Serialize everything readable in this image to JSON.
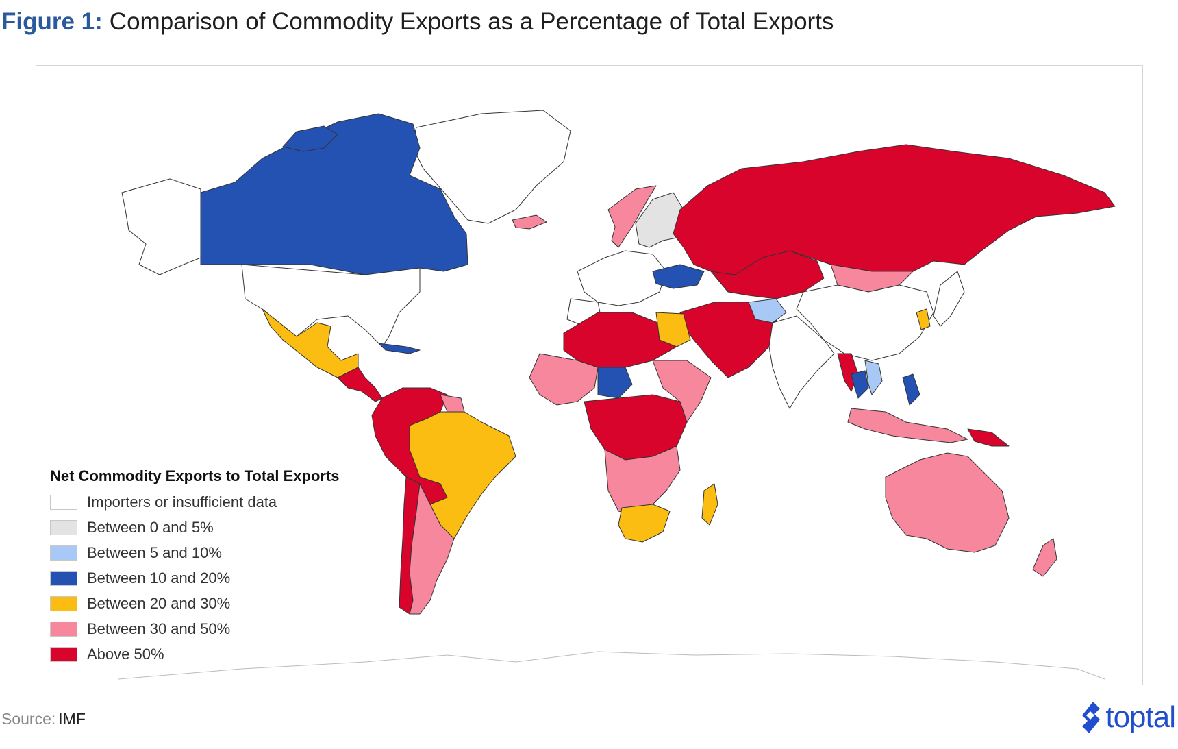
{
  "title": {
    "figure_label": "Figure 1:",
    "text": "Comparison of Commodity Exports as a Percentage of Total Exports"
  },
  "legend": {
    "title": "Net Commodity Exports to Total Exports",
    "items": [
      {
        "label": "Importers or insufficient data",
        "color": "#ffffff"
      },
      {
        "label": "Between 0 and 5%",
        "color": "#e3e3e3"
      },
      {
        "label": "Between 5 and 10%",
        "color": "#a8c8f5"
      },
      {
        "label": "Between 10 and 20%",
        "color": "#2352b2"
      },
      {
        "label": "Between 20 and 30%",
        "color": "#fbbd12"
      },
      {
        "label": "Between 30 and 50%",
        "color": "#f7879c"
      },
      {
        "label": "Above 50%",
        "color": "#d9042b"
      }
    ]
  },
  "source": {
    "label": "Source:",
    "value": "IMF"
  },
  "logo": {
    "text": "toptal",
    "color": "#204ecf"
  }
}
